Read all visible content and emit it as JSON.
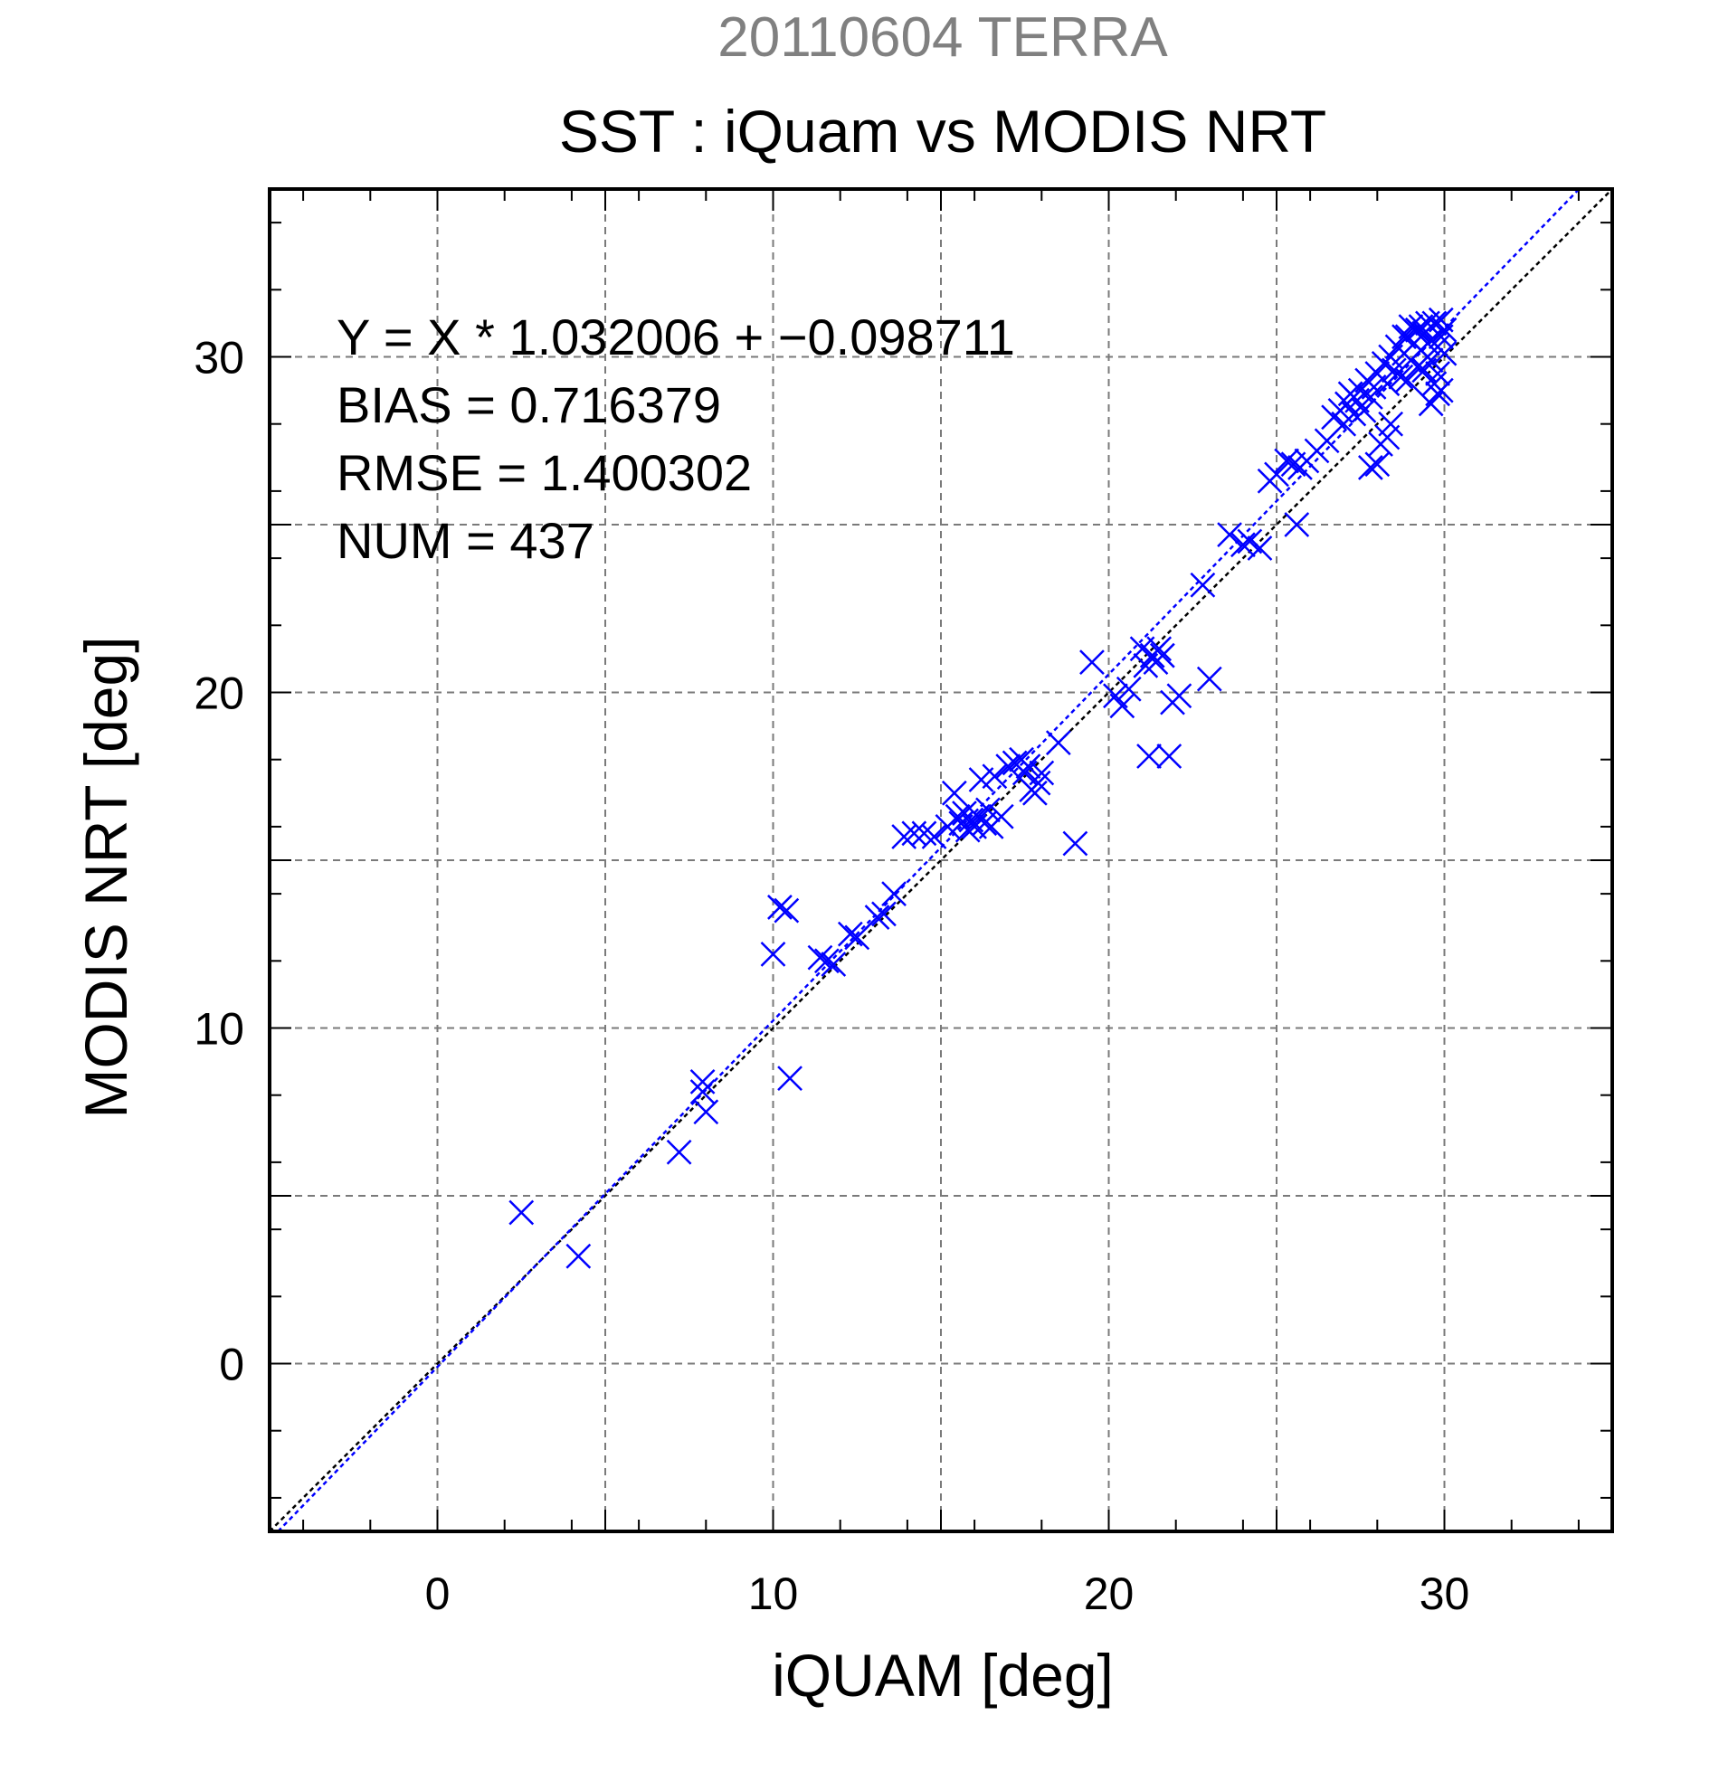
{
  "header": {
    "date_title": "20110604 TERRA",
    "main_title": "SST : iQuam vs MODIS NRT"
  },
  "stats": {
    "regression": "Y = X * 1.032006 + −0.098711",
    "bias": "BIAS = 0.716379",
    "rmse": "RMSE = 1.400302",
    "num": "NUM = 437"
  },
  "colors": {
    "points": "#0000ff",
    "fit_line": "#0000ff",
    "identity_line": "#000000",
    "grid": "#7a7a7a",
    "date_title": "#808080"
  },
  "chart_data": {
    "type": "scatter",
    "xlabel": "iQUAM [deg]",
    "ylabel": "MODIS NRT [deg]",
    "xlim": [
      -5,
      35
    ],
    "ylim": [
      -5,
      35
    ],
    "xticks": [
      0,
      10,
      20,
      30
    ],
    "yticks": [
      0,
      10,
      20,
      30
    ],
    "grid": true,
    "marker": "x",
    "fit_line": {
      "slope": 1.032006,
      "intercept": -0.098711
    },
    "identity_line": {
      "slope": 1,
      "intercept": 0
    },
    "points": [
      [
        2.5,
        4.5
      ],
      [
        4.2,
        3.2
      ],
      [
        7.2,
        6.3
      ],
      [
        7.9,
        8.1
      ],
      [
        8.0,
        7.5
      ],
      [
        7.9,
        8.4
      ],
      [
        10.0,
        12.2
      ],
      [
        10.2,
        13.6
      ],
      [
        10.4,
        13.5
      ],
      [
        10.5,
        8.5
      ],
      [
        11.4,
        12.1
      ],
      [
        11.6,
        12.0
      ],
      [
        11.8,
        11.9
      ],
      [
        12.3,
        12.8
      ],
      [
        12.5,
        12.7
      ],
      [
        13.1,
        13.3
      ],
      [
        13.3,
        13.4
      ],
      [
        13.6,
        14.0
      ],
      [
        13.9,
        15.7
      ],
      [
        14.2,
        15.8
      ],
      [
        14.5,
        15.8
      ],
      [
        14.8,
        15.7
      ],
      [
        15.2,
        16.0
      ],
      [
        15.4,
        17.0
      ],
      [
        15.5,
        16.3
      ],
      [
        15.6,
        16.1
      ],
      [
        15.7,
        16.4
      ],
      [
        15.8,
        15.9
      ],
      [
        15.9,
        16.2
      ],
      [
        16.0,
        16.0
      ],
      [
        16.1,
        16.3
      ],
      [
        16.2,
        17.4
      ],
      [
        16.3,
        16.1
      ],
      [
        16.4,
        16.5
      ],
      [
        16.5,
        16.0
      ],
      [
        16.6,
        17.5
      ],
      [
        16.8,
        16.3
      ],
      [
        17.0,
        17.8
      ],
      [
        17.2,
        17.9
      ],
      [
        17.4,
        18.0
      ],
      [
        17.5,
        17.6
      ],
      [
        17.6,
        17.8
      ],
      [
        17.7,
        17.1
      ],
      [
        17.8,
        17.0
      ],
      [
        17.9,
        17.3
      ],
      [
        18.0,
        17.6
      ],
      [
        18.5,
        18.5
      ],
      [
        19.0,
        15.5
      ],
      [
        19.5,
        20.9
      ],
      [
        20.2,
        19.9
      ],
      [
        20.4,
        19.6
      ],
      [
        20.6,
        20.1
      ],
      [
        21.0,
        21.3
      ],
      [
        21.1,
        20.8
      ],
      [
        21.3,
        21.1
      ],
      [
        21.4,
        20.9
      ],
      [
        21.5,
        21.3
      ],
      [
        21.6,
        21.1
      ],
      [
        21.2,
        18.1
      ],
      [
        21.8,
        18.1
      ],
      [
        21.9,
        19.7
      ],
      [
        22.1,
        19.9
      ],
      [
        23.0,
        20.4
      ],
      [
        22.8,
        23.2
      ],
      [
        23.6,
        24.7
      ],
      [
        24.0,
        24.4
      ],
      [
        24.2,
        24.5
      ],
      [
        24.5,
        24.3
      ],
      [
        24.8,
        26.3
      ],
      [
        25.0,
        26.5
      ],
      [
        25.3,
        26.9
      ],
      [
        25.5,
        26.8
      ],
      [
        25.6,
        25.0
      ],
      [
        25.7,
        26.7
      ],
      [
        25.9,
        26.9
      ],
      [
        26.2,
        27.2
      ],
      [
        26.5,
        27.5
      ],
      [
        26.7,
        28.2
      ],
      [
        26.9,
        28.4
      ],
      [
        27.0,
        28.0
      ],
      [
        27.1,
        28.6
      ],
      [
        27.2,
        28.9
      ],
      [
        27.3,
        28.3
      ],
      [
        27.4,
        28.7
      ],
      [
        27.5,
        29.0
      ],
      [
        27.6,
        28.4
      ],
      [
        27.7,
        29.3
      ],
      [
        27.8,
        28.8
      ],
      [
        27.9,
        29.1
      ],
      [
        27.8,
        26.7
      ],
      [
        28.0,
        26.8
      ],
      [
        28.1,
        27.4
      ],
      [
        28.3,
        27.6
      ],
      [
        28.4,
        28.0
      ],
      [
        28.0,
        29.5
      ],
      [
        28.2,
        29.8
      ],
      [
        28.3,
        29.2
      ],
      [
        28.4,
        30.0
      ],
      [
        28.5,
        29.6
      ],
      [
        28.6,
        30.3
      ],
      [
        28.7,
        29.4
      ],
      [
        28.8,
        30.1
      ],
      [
        28.9,
        30.6
      ],
      [
        29.0,
        29.9
      ],
      [
        29.1,
        30.4
      ],
      [
        29.2,
        30.8
      ],
      [
        29.3,
        30.2
      ],
      [
        29.4,
        30.7
      ],
      [
        29.5,
        30.0
      ],
      [
        29.6,
        30.5
      ],
      [
        29.7,
        31.0
      ],
      [
        29.8,
        30.3
      ],
      [
        29.9,
        30.6
      ],
      [
        30.0,
        30.1
      ],
      [
        29.4,
        29.6
      ],
      [
        29.6,
        29.9
      ],
      [
        29.8,
        29.5
      ],
      [
        29.5,
        31.0
      ],
      [
        29.2,
        29.7
      ],
      [
        28.9,
        29.3
      ],
      [
        29.7,
        29.2
      ],
      [
        29.9,
        29.0
      ],
      [
        29.6,
        28.6
      ],
      [
        29.8,
        28.9
      ],
      [
        29.3,
        30.9
      ],
      [
        29.0,
        30.9
      ],
      [
        28.8,
        30.6
      ],
      [
        30.0,
        30.8
      ],
      [
        29.9,
        31.1
      ],
      [
        29.5,
        30.4
      ]
    ]
  }
}
